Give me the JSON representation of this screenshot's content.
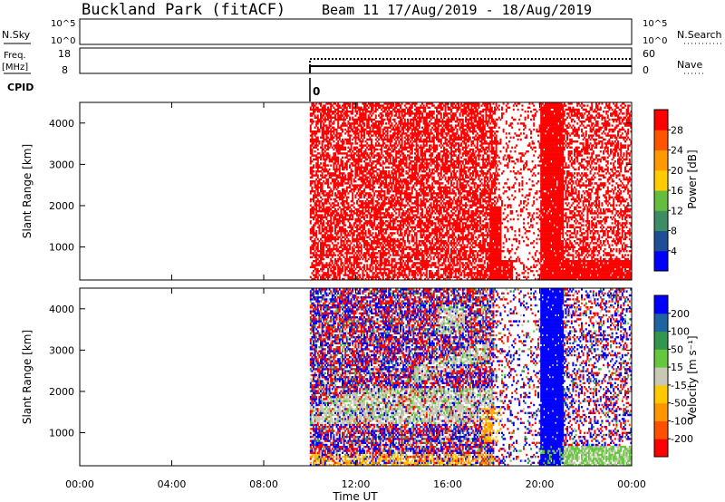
{
  "header": {
    "site": "Buckland Park (fitACF)",
    "beam_title": "Beam 11 17/Aug/2019 - 18/Aug/2019"
  },
  "strips": {
    "nsky": {
      "label": "N.Sky",
      "ticks_left": [
        "10^5",
        "10^0"
      ],
      "ticks_right": [
        "10^5",
        "10^0"
      ],
      "right_label": "N.Search"
    },
    "freq": {
      "label_line1": "Freq.",
      "label_line2": "[MHz]",
      "ticks_left": [
        "18",
        "8"
      ],
      "ticks_right": [
        "60",
        "0"
      ],
      "right_label": "Nave"
    },
    "cpid": {
      "label": "CPID",
      "value": "0"
    }
  },
  "colors": {
    "frame": "#000000",
    "power_scale": [
      "#0000ff",
      "#1e4f96",
      "#3c8c64",
      "#64be3c",
      "#ffcc00",
      "#ff9900",
      "#ff5500",
      "#ff0000"
    ],
    "velocity_scale": [
      "#ff0000",
      "#ff5000",
      "#ff9600",
      "#ffc800",
      "#c8c8b4",
      "#64c83c",
      "#329650",
      "#1e64a0",
      "#0000ff"
    ]
  },
  "chart_data": [
    {
      "type": "heatmap",
      "title": "",
      "xlabel": "",
      "ylabel": "Slant Range [km]",
      "ylim": [
        200,
        4500
      ],
      "xlim": [
        0,
        24
      ],
      "yticks": [
        "1000",
        "2000",
        "3000",
        "4000"
      ],
      "colorbar": {
        "label": "Power [dB]",
        "ticks": [
          "4",
          "8",
          "12",
          "16",
          "20",
          "24",
          "28"
        ],
        "range": [
          0,
          30
        ]
      },
      "data_start_hour": 10.0,
      "regions": [
        {
          "x_range": [
            10.0,
            18.1
          ],
          "y_range": [
            200,
            4500
          ],
          "dominant_value": 30
        },
        {
          "x_range": [
            20.0,
            21.0
          ],
          "y_range": [
            200,
            4500
          ],
          "dominant_value": 30
        },
        {
          "x_range": [
            21.0,
            24.0
          ],
          "y_range": [
            200,
            700
          ],
          "dominant_value": 30
        }
      ]
    },
    {
      "type": "heatmap",
      "title": "",
      "xlabel": "Time UT",
      "ylabel": "Slant Range [km]",
      "ylim": [
        200,
        4500
      ],
      "xlim": [
        0,
        24
      ],
      "xticks": [
        "00:00",
        "04:00",
        "08:00",
        "12:00",
        "16:00",
        "20:00",
        "00:00"
      ],
      "yticks": [
        "1000",
        "2000",
        "3000",
        "4000"
      ],
      "colorbar": {
        "label": "Velocity [m s⁻¹]",
        "ticks": [
          "-200",
          "-100",
          "-50",
          "-15",
          "15",
          "50",
          "100",
          "200"
        ],
        "range": [
          -250,
          250
        ]
      },
      "data_start_hour": 10.0,
      "regions": [
        {
          "x_range": [
            10.0,
            18.0
          ],
          "y_range": [
            1200,
            2100
          ],
          "dominant_value": 0
        },
        {
          "x_range": [
            20.0,
            21.0
          ],
          "y_range": [
            200,
            4500
          ],
          "dominant_value": 250
        },
        {
          "x_range": [
            21.0,
            24.0
          ],
          "y_range": [
            200,
            700
          ],
          "dominant_value": 20
        }
      ]
    }
  ]
}
